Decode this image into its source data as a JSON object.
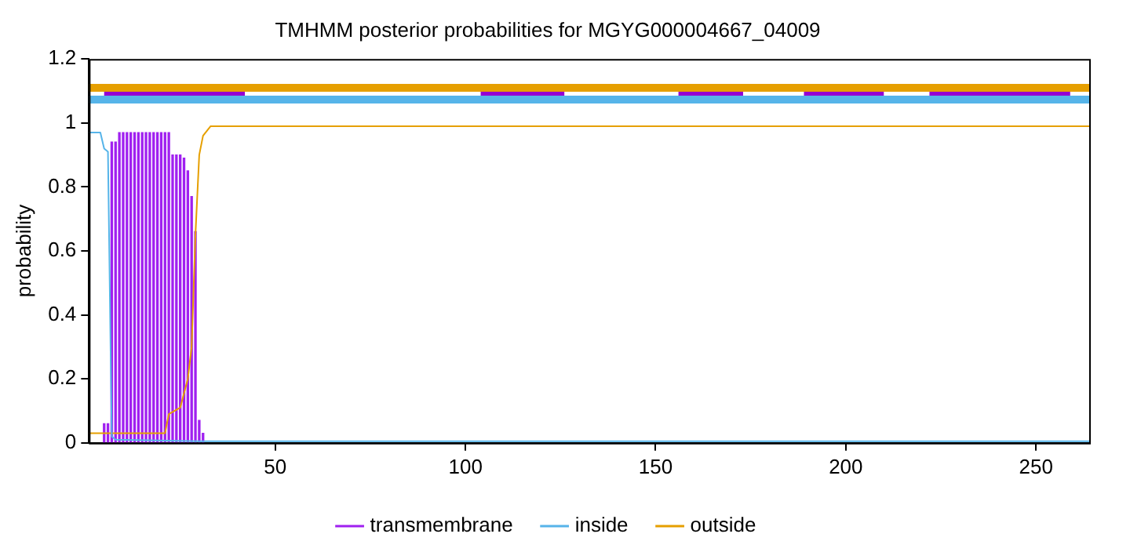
{
  "chart_data": {
    "type": "line",
    "title": "TMHMM posterior probabilities for MGYG000004667_04009",
    "ylabel": "probability",
    "xlim": [
      1,
      264
    ],
    "xticks": [
      50,
      100,
      150,
      200,
      250
    ],
    "ylim": [
      0,
      1.2
    ],
    "yticks": [
      0,
      0.2,
      0.4,
      0.6,
      0.8,
      1,
      1.2
    ],
    "grid": false,
    "legend": "bottom",
    "marker": "none",
    "line_style": "solid",
    "series": [
      {
        "name": "transmembrane",
        "type": "bar",
        "color": "#a020f0",
        "x": [
          5,
          6,
          7,
          8,
          9,
          10,
          11,
          12,
          13,
          14,
          15,
          16,
          17,
          18,
          19,
          20,
          21,
          22,
          23,
          24,
          25,
          26,
          27,
          28,
          29,
          30,
          31
        ],
        "values": [
          0.06,
          0.06,
          0.94,
          0.94,
          0.97,
          0.97,
          0.97,
          0.97,
          0.97,
          0.97,
          0.97,
          0.97,
          0.97,
          0.97,
          0.97,
          0.97,
          0.97,
          0.97,
          0.9,
          0.9,
          0.9,
          0.89,
          0.85,
          0.77,
          0.66,
          0.07,
          0.03
        ]
      },
      {
        "name": "inside",
        "color": "#56b4e9",
        "x": [
          1,
          4,
          5,
          6,
          7,
          8,
          30,
          264
        ],
        "values": [
          0.97,
          0.97,
          0.92,
          0.91,
          0.02,
          0.01,
          0.005,
          0.005
        ]
      },
      {
        "name": "outside",
        "color": "#e69f00",
        "x": [
          1,
          21,
          22,
          25,
          27,
          28,
          29,
          30,
          31,
          33,
          264
        ],
        "values": [
          0.03,
          0.03,
          0.09,
          0.11,
          0.2,
          0.3,
          0.65,
          0.9,
          0.96,
          0.99,
          0.99
        ]
      },
      {
        "color": "#e69f00",
        "x": [
          1,
          264
        ],
        "values": [
          1.11,
          1.11
        ]
      },
      {
        "color": "#56b4e9",
        "x": [
          1,
          264
        ],
        "values": [
          1.073,
          1.073
        ]
      },
      {
        "color": "#9400d3",
        "x": [
          5,
          42,
          73,
          104,
          126,
          140,
          156,
          173,
          181,
          189,
          210,
          216,
          222,
          259
        ],
        "values": [
          1.09,
          1.09,
          null,
          1.09,
          1.09,
          null,
          1.09,
          1.09,
          null,
          1.09,
          1.09,
          null,
          1.09,
          1.09
        ]
      }
    ]
  }
}
